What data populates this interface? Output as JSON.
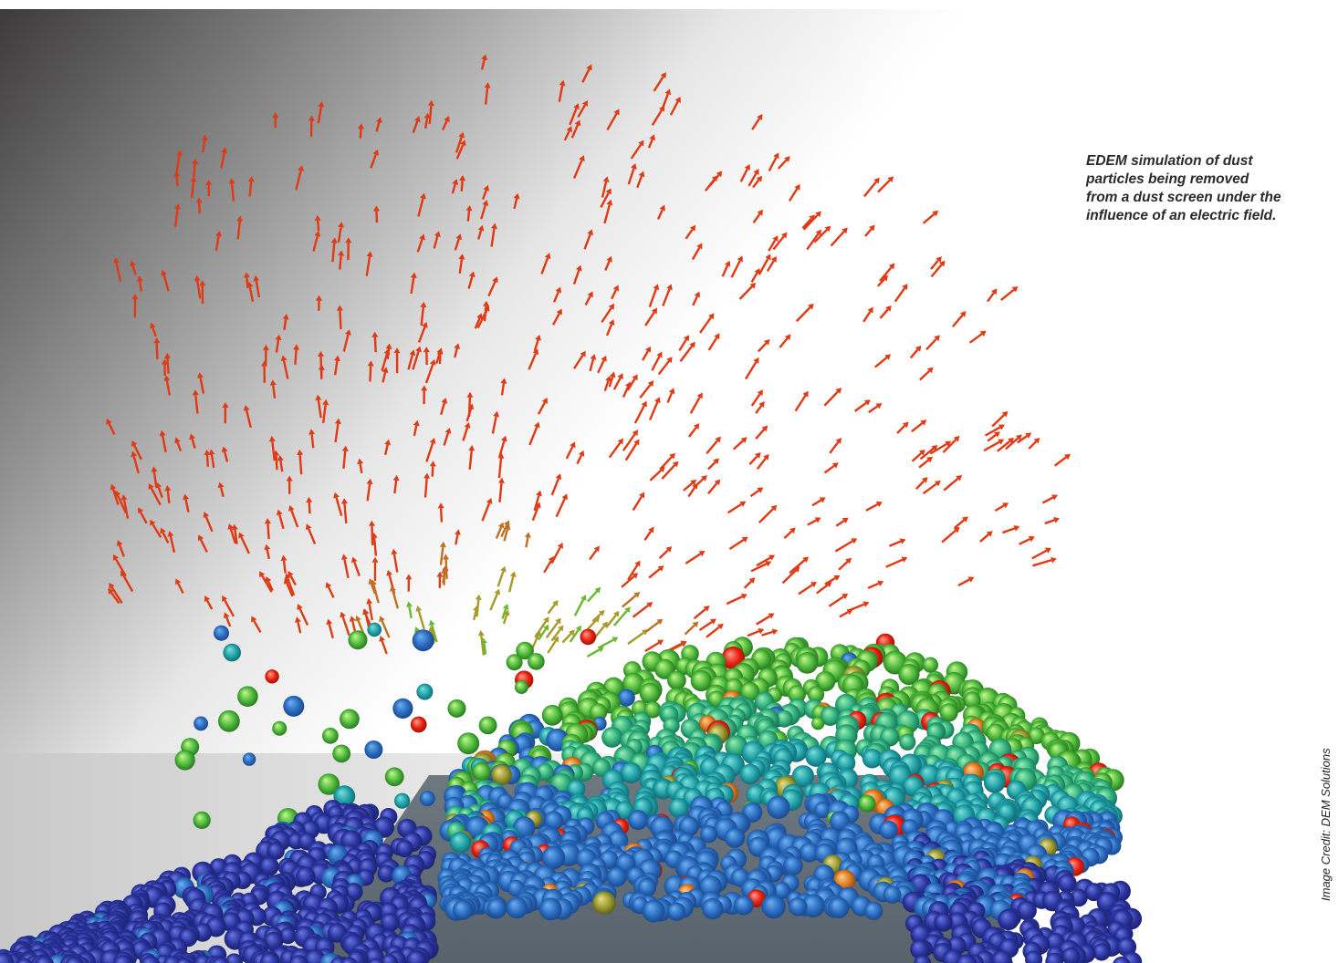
{
  "caption": {
    "lines": [
      "EDEM simulation of dust",
      "particles being removed",
      "from a dust screen under the",
      "influence of an electric field."
    ]
  },
  "credit": "Image Credit: DEM Solutions"
}
